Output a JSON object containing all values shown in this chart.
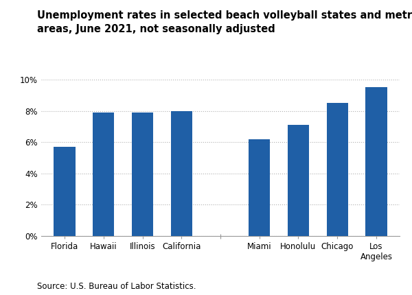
{
  "categories": [
    "Florida",
    "Hawaii",
    "Illinois",
    "California",
    "",
    "Miami",
    "Honolulu",
    "Chicago",
    "Los\nAngeles"
  ],
  "values": [
    5.7,
    7.9,
    7.9,
    8.0,
    null,
    6.2,
    7.1,
    8.5,
    9.5
  ],
  "bar_color": "#1F5FA6",
  "title_line1": "Unemployment rates in selected beach volleyball states and metropolitan",
  "title_line2": "areas, June 2021, not seasonally adjusted",
  "title_fontsize": 10.5,
  "ylim": [
    0,
    10
  ],
  "yticks": [
    0,
    2,
    4,
    6,
    8,
    10
  ],
  "ytick_labels": [
    "0%",
    "2%",
    "4%",
    "6%",
    "8%",
    "10%"
  ],
  "source_text": "Source: U.S. Bureau of Labor Statistics.",
  "background_color": "#ffffff",
  "grid_color": "#b0b0b0"
}
